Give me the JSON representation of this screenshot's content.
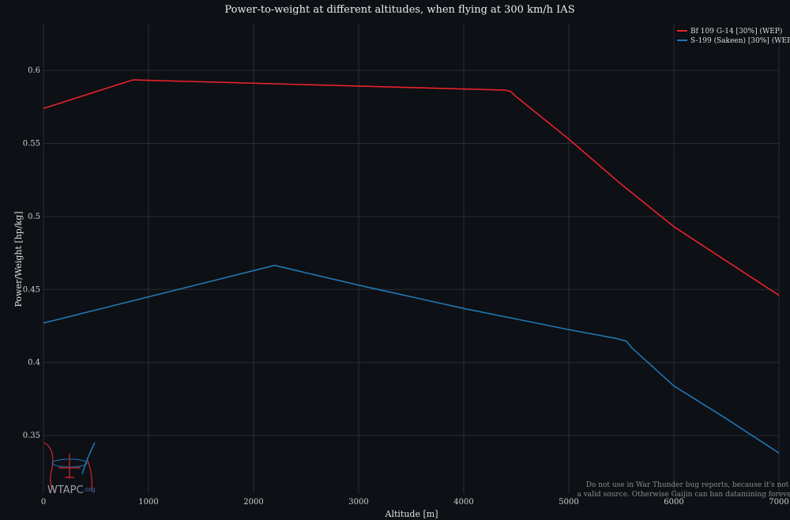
{
  "chart_data": {
    "type": "line",
    "title": "Power-to-weight at different altitudes, when flying at 300 km/h IAS",
    "xlabel": "Altitude [m]",
    "ylabel": "Power/Weight [hp/kg]",
    "xlim": [
      0,
      7000
    ],
    "ylim": [
      0.31,
      0.632
    ],
    "xticks": [
      0,
      1000,
      2000,
      3000,
      4000,
      5000,
      6000,
      7000
    ],
    "yticks": [
      0.35,
      0.4,
      0.45,
      0.5,
      0.55,
      0.6
    ],
    "ytick_labels": [
      "0.35",
      "0.4",
      "0.45",
      "0.5",
      "0.55",
      "0.6"
    ],
    "grid": true,
    "legend_position": "top-right",
    "series": [
      {
        "name": "Bf 109 G-14 [30%] (WEP)",
        "color": "#e8232a",
        "x": [
          0,
          850,
          4400,
          4450,
          4500,
          5000,
          5500,
          6000,
          6500,
          7000
        ],
        "y": [
          0.574,
          0.5935,
          0.5865,
          0.5855,
          0.582,
          0.553,
          0.522,
          0.493,
          0.4695,
          0.446
        ]
      },
      {
        "name": "S-199 (Sakeen) [30%] (WEP)",
        "color": "#1f77b4",
        "x": [
          0,
          2200,
          3000,
          4000,
          5000,
          5450,
          5550,
          5600,
          6000,
          6500,
          7000
        ],
        "y": [
          0.427,
          0.4665,
          0.453,
          0.437,
          0.4225,
          0.4165,
          0.4145,
          0.41,
          0.384,
          0.3615,
          0.338
        ]
      }
    ]
  },
  "disclaimer": {
    "line1": "Do not use in War Thunder bug reports, because it's not",
    "line2": "a valid source. Otherwise Gaijin can ban datamining forever!"
  },
  "logo": {
    "text": "WTAPC",
    "suffix": ".org"
  }
}
